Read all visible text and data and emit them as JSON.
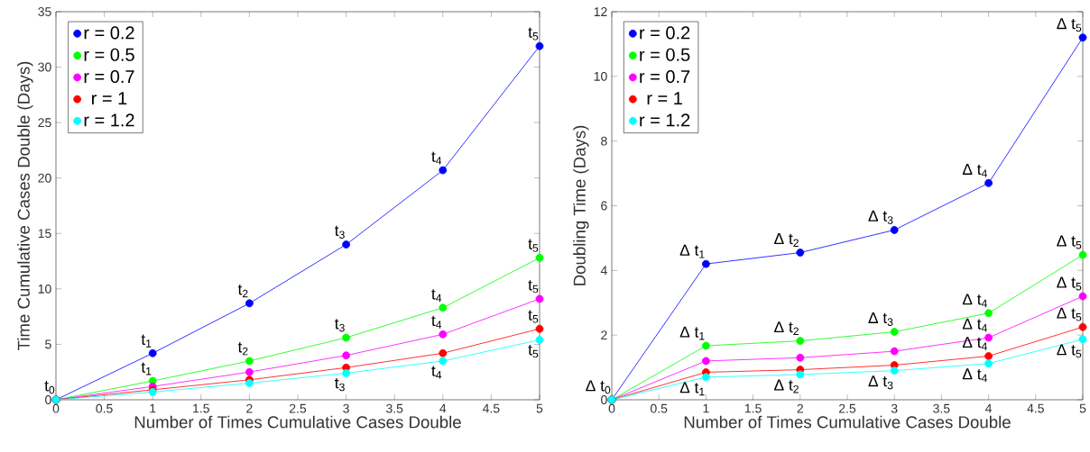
{
  "chart_data": [
    {
      "type": "line",
      "xlabel": "Number of Times Cumulative Cases Double",
      "ylabel": "Time Cumulative Cases Double (Days)",
      "x": [
        0,
        1,
        2,
        3,
        4,
        5
      ],
      "series": [
        {
          "name": "r = 0.2",
          "color": "#0000ff",
          "values": [
            0,
            4.2,
            8.7,
            14.0,
            20.7,
            31.9
          ]
        },
        {
          "name": "r = 0.5",
          "color": "#00ff00",
          "values": [
            0,
            1.7,
            3.5,
            5.6,
            8.3,
            12.8
          ]
        },
        {
          "name": "r = 0.7",
          "color": "#ff00ff",
          "values": [
            0,
            1.2,
            2.5,
            4.0,
            5.9,
            9.1
          ]
        },
        {
          "name": "r = 1",
          "color": "#ff0000",
          "values": [
            0,
            0.9,
            1.8,
            2.9,
            4.2,
            6.4
          ]
        },
        {
          "name": "r = 1.2",
          "color": "#00ffff",
          "values": [
            0,
            0.7,
            1.5,
            2.4,
            3.5,
            5.4
          ]
        }
      ],
      "xlim": [
        0,
        5
      ],
      "xticks": [
        0,
        0.5,
        1,
        1.5,
        2,
        2.5,
        3,
        3.5,
        4,
        4.5,
        5
      ],
      "ylim": [
        0,
        35
      ],
      "yticks": [
        0,
        5,
        10,
        15,
        20,
        25,
        30,
        35
      ],
      "legend": "top left",
      "marker": "circle",
      "line_style": "solid",
      "annotations": [
        {
          "text": "t$_{0}$",
          "x": 0,
          "y": 0
        },
        {
          "text": "t$_{1}$",
          "x": 1,
          "y": 4.2
        },
        {
          "text": "t$_{2}$",
          "x": 2,
          "y": 8.7
        },
        {
          "text": "t$_{3}$",
          "x": 3,
          "y": 14.0
        },
        {
          "text": "t$_{4}$",
          "x": 4,
          "y": 20.7
        },
        {
          "text": "t$_{5}$",
          "x": 5,
          "y": 31.9
        },
        {
          "text": "t$_{1}$",
          "x": 1,
          "y": 1.7
        },
        {
          "text": "t$_{2}$",
          "x": 2,
          "y": 3.5
        },
        {
          "text": "t$_{3}$",
          "x": 3,
          "y": 5.6
        },
        {
          "text": "t$_{4}$",
          "x": 4,
          "y": 8.3
        },
        {
          "text": "t$_{5}$",
          "x": 5,
          "y": 12.8
        },
        {
          "text": "t$_{4}$",
          "x": 4,
          "y": 5.9
        },
        {
          "text": "t$_{5}$",
          "x": 5,
          "y": 9.1
        },
        {
          "text": "t$_{5}$",
          "x": 5,
          "y": 6.4
        },
        {
          "text": "t$_{3}$",
          "x": 3,
          "y": 2.4
        },
        {
          "text": "t$_{4}$",
          "x": 4,
          "y": 3.5
        },
        {
          "text": "t$_{5}$",
          "x": 5,
          "y": 5.4
        }
      ]
    },
    {
      "type": "line",
      "xlabel": "Number of Times Cumulative Cases Double",
      "ylabel": "Doubling Time (Days)",
      "x": [
        0,
        1,
        2,
        3,
        4,
        5
      ],
      "series": [
        {
          "name": "r = 0.2",
          "color": "#0000ff",
          "values": [
            0,
            4.2,
            4.55,
            5.25,
            6.7,
            11.2
          ]
        },
        {
          "name": "r = 0.5",
          "color": "#00ff00",
          "values": [
            0,
            1.67,
            1.82,
            2.1,
            2.68,
            4.48
          ]
        },
        {
          "name": "r = 0.7",
          "color": "#ff00ff",
          "values": [
            0,
            1.2,
            1.3,
            1.5,
            1.92,
            3.2
          ]
        },
        {
          "name": "r = 1",
          "color": "#ff0000",
          "values": [
            0,
            0.85,
            0.93,
            1.07,
            1.35,
            2.25
          ]
        },
        {
          "name": "r = 1.2",
          "color": "#00ffff",
          "values": [
            0,
            0.7,
            0.78,
            0.9,
            1.12,
            1.87
          ]
        }
      ],
      "xlim": [
        0,
        5
      ],
      "xticks": [
        0,
        0.5,
        1,
        1.5,
        2,
        2.5,
        3,
        3.5,
        4,
        4.5,
        5
      ],
      "ylim": [
        0,
        12
      ],
      "yticks": [
        0,
        2,
        4,
        6,
        8,
        10,
        12
      ],
      "legend": "top left",
      "marker": "circle",
      "line_style": "solid",
      "annotations": [
        {
          "text": "Δ t$_{0}$",
          "x": 0,
          "y": 0
        },
        {
          "text": "Δ t$_{1}$",
          "x": 1,
          "y": 4.2
        },
        {
          "text": "Δ t$_{2}$",
          "x": 2,
          "y": 4.55
        },
        {
          "text": "Δ t$_{3}$",
          "x": 3,
          "y": 5.25
        },
        {
          "text": "Δ t$_{4}$",
          "x": 4,
          "y": 6.7
        },
        {
          "text": "Δ t$_{5}$",
          "x": 5,
          "y": 11.2
        },
        {
          "text": "Δ t$_{1}$",
          "x": 1,
          "y": 1.67
        },
        {
          "text": "Δ t$_{2}$",
          "x": 2,
          "y": 1.82
        },
        {
          "text": "Δ t$_{3}$",
          "x": 3,
          "y": 2.1
        },
        {
          "text": "Δ t$_{4}$",
          "x": 4,
          "y": 2.68
        },
        {
          "text": "Δ t$_{5}$",
          "x": 5,
          "y": 4.48
        },
        {
          "text": "Δ t$_{4}$",
          "x": 4,
          "y": 1.92
        },
        {
          "text": "Δ t$_{5}$",
          "x": 5,
          "y": 3.2
        },
        {
          "text": "Δ t$_{4}$",
          "x": 4,
          "y": 1.35
        },
        {
          "text": "Δ t$_{5}$",
          "x": 5,
          "y": 2.25
        },
        {
          "text": "Δ t$_{1}$",
          "x": 1,
          "y": 0.7
        },
        {
          "text": "Δ t$_{2}$",
          "x": 2,
          "y": 0.78
        },
        {
          "text": "Δ t$_{3}$",
          "x": 3,
          "y": 0.9
        },
        {
          "text": "Δ t$_{4}$",
          "x": 4,
          "y": 1.12
        },
        {
          "text": "Δ t$_{5}$",
          "x": 5,
          "y": 1.87
        }
      ]
    }
  ]
}
